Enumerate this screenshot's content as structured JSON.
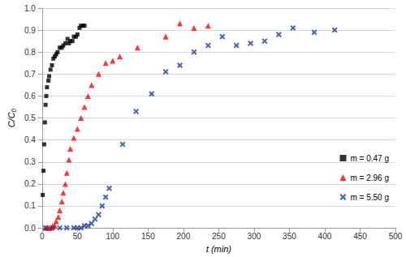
{
  "chart_data": {
    "type": "scatter",
    "x_label": "t (min)",
    "y_label": "C/C₀",
    "xlim": [
      0,
      500
    ],
    "xticks": [
      0,
      50,
      100,
      150,
      200,
      250,
      300,
      350,
      400,
      450,
      500
    ],
    "ylim": [
      0,
      1.0
    ],
    "yticks": [
      {
        "value": 0,
        "label": "0.0"
      },
      {
        "value": 0.1,
        "label": "0.1"
      },
      {
        "value": 0.2,
        "label": "0.2"
      },
      {
        "value": 0.3,
        "label": "0.3"
      },
      {
        "value": 0.4,
        "label": "0.4"
      },
      {
        "value": 0.5,
        "label": "0.5"
      },
      {
        "value": 0.6,
        "label": "0.6"
      },
      {
        "value": 0.7,
        "label": "0.7"
      },
      {
        "value": 0.8,
        "label": "0.8"
      },
      {
        "value": 0.9,
        "label": "0.9"
      },
      {
        "value": 1.0,
        "label": "1.0"
      }
    ],
    "grid": true,
    "legend": "right",
    "series": [
      {
        "name": "m = 0.47 g",
        "color": "#000000",
        "marker": "square",
        "x": [
          1,
          2,
          3,
          4,
          5,
          6,
          7,
          9,
          10,
          12,
          14,
          16,
          18,
          20,
          22,
          25,
          28,
          30,
          33,
          36,
          38,
          40,
          43,
          45,
          48,
          50,
          53,
          55,
          58,
          60
        ],
        "values": [
          0.15,
          0.26,
          0.38,
          0.48,
          0.56,
          0.6,
          0.64,
          0.67,
          0.69,
          0.72,
          0.74,
          0.77,
          0.78,
          0.79,
          0.8,
          0.82,
          0.82,
          0.83,
          0.84,
          0.86,
          0.84,
          0.85,
          0.85,
          0.87,
          0.87,
          0.88,
          0.91,
          0.92,
          0.92,
          0.92
        ]
      },
      {
        "name": "m = 2.96 g",
        "color": "#FF0000",
        "marker": "triangle",
        "x": [
          5,
          8,
          10,
          13,
          15,
          18,
          20,
          23,
          25,
          28,
          30,
          33,
          35,
          38,
          40,
          45,
          50,
          55,
          60,
          65,
          70,
          80,
          90,
          100,
          110,
          135,
          175,
          195,
          215,
          235
        ],
        "values": [
          0,
          0,
          0,
          0,
          0.01,
          0.01,
          0.03,
          0.05,
          0.08,
          0.12,
          0.16,
          0.2,
          0.25,
          0.31,
          0.36,
          0.41,
          0.45,
          0.5,
          0.55,
          0.6,
          0.65,
          0.7,
          0.75,
          0.76,
          0.78,
          0.82,
          0.87,
          0.93,
          0.91,
          0.92
        ]
      },
      {
        "name": "m = 5.50 g",
        "color": "#1F3A93",
        "marker": "x",
        "x": [
          5,
          15,
          25,
          35,
          45,
          50,
          55,
          60,
          65,
          70,
          75,
          80,
          85,
          90,
          95,
          114,
          133,
          155,
          175,
          195,
          215,
          235,
          255,
          275,
          295,
          315,
          335,
          355,
          385,
          414
        ],
        "values": [
          0,
          0,
          0,
          0,
          0,
          0,
          0,
          0.01,
          0.01,
          0.02,
          0.04,
          0.06,
          0.1,
          0.14,
          0.18,
          0.38,
          0.53,
          0.61,
          0.71,
          0.74,
          0.8,
          0.83,
          0.87,
          0.83,
          0.84,
          0.85,
          0.88,
          0.91,
          0.89,
          0.9
        ]
      }
    ]
  }
}
